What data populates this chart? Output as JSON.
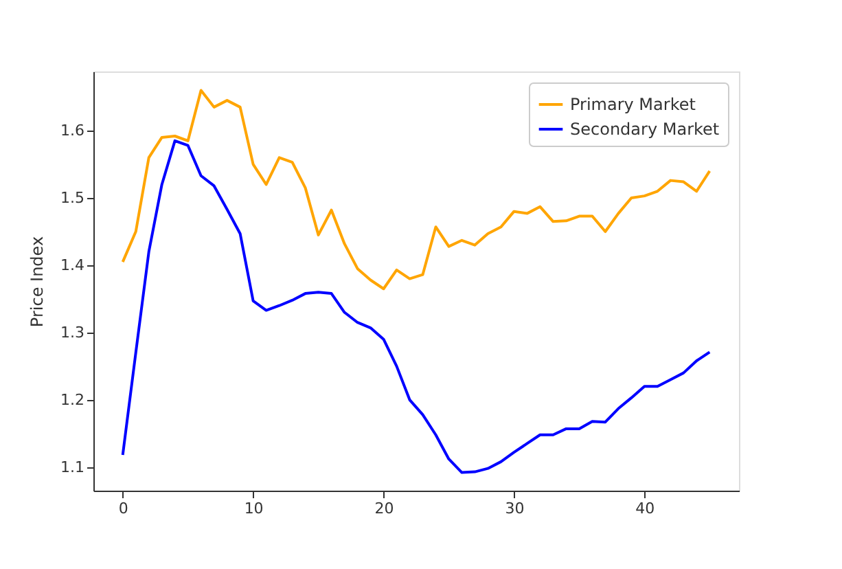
{
  "chart_data": {
    "type": "line",
    "ylabel": "Price Index",
    "x": [
      0,
      1,
      2,
      3,
      4,
      5,
      6,
      7,
      8,
      9,
      10,
      11,
      12,
      13,
      14,
      15,
      16,
      17,
      18,
      19,
      20,
      21,
      22,
      23,
      24,
      25,
      26,
      27,
      28,
      29,
      30,
      31,
      32,
      33,
      34,
      35,
      36,
      37,
      38,
      39,
      40,
      41,
      42,
      43,
      44,
      45
    ],
    "series": [
      {
        "name": "Primary Market",
        "color": "#ffa500",
        "values": [
          1.405,
          1.45,
          1.56,
          1.59,
          1.592,
          1.585,
          1.66,
          1.635,
          1.645,
          1.635,
          1.55,
          1.52,
          1.56,
          1.553,
          1.515,
          1.445,
          1.482,
          1.432,
          1.395,
          1.378,
          1.365,
          1.393,
          1.38,
          1.386,
          1.457,
          1.428,
          1.437,
          1.43,
          1.447,
          1.457,
          1.48,
          1.477,
          1.487,
          1.465,
          1.466,
          1.473,
          1.473,
          1.45,
          1.477,
          1.5,
          1.503,
          1.51,
          1.526,
          1.524,
          1.51,
          1.54
        ]
      },
      {
        "name": "Secondary Market",
        "color": "#0000ff",
        "values": [
          1.118,
          1.27,
          1.42,
          1.52,
          1.585,
          1.578,
          1.533,
          1.518,
          1.483,
          1.447,
          1.347,
          1.333,
          1.34,
          1.348,
          1.358,
          1.36,
          1.358,
          1.33,
          1.315,
          1.307,
          1.29,
          1.25,
          1.2,
          1.178,
          1.148,
          1.112,
          1.092,
          1.093,
          1.098,
          1.108,
          1.122,
          1.135,
          1.148,
          1.148,
          1.157,
          1.157,
          1.168,
          1.167,
          1.187,
          1.203,
          1.22,
          1.22,
          1.23,
          1.24,
          1.258,
          1.271
        ]
      }
    ],
    "xlim": [
      -2.25,
      47.25
    ],
    "ylim": [
      1.065,
      1.688
    ],
    "xticks": [
      0,
      10,
      20,
      30,
      40
    ],
    "yticks": [
      1.1,
      1.2,
      1.3,
      1.4,
      1.5,
      1.6
    ],
    "grid": false,
    "legend": "top right",
    "marker": "none",
    "line_style": "solid"
  }
}
